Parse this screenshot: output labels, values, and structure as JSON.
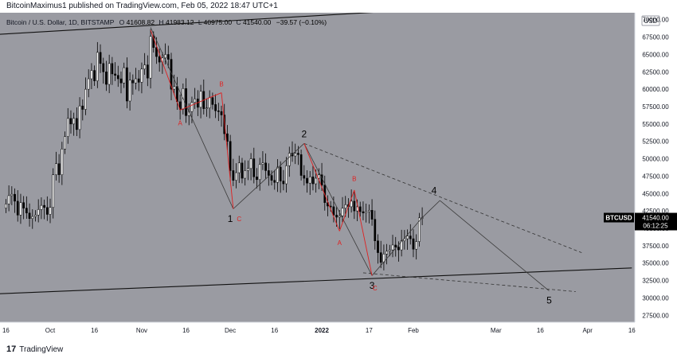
{
  "header": {
    "publisher_line": "BitcoinMaximus1 published on TradingView.com, Feb 05, 2022 18:47 UTC+1"
  },
  "footer": {
    "logo_glyph": "17",
    "brand": "TradingView"
  },
  "chart_data": {
    "type": "candlestick",
    "symbol_line": {
      "name": "Bitcoin / U.S. Dollar, 1D, BITSTAMP",
      "o_label": "O",
      "o": "41608.82",
      "h_label": "H",
      "h": "41983.12",
      "l_label": "L",
      "l": "40975.00",
      "c_label": "C",
      "c": "41540.00",
      "change": "−39.57 (−0.10%)"
    },
    "currency": "USD",
    "price_tag": {
      "ticker": "BTCUSD",
      "price": "41540.00",
      "countdown": "06:12:25"
    },
    "y_axis": {
      "ticks": [
        "70000.00",
        "67500.00",
        "65000.00",
        "62500.00",
        "60000.00",
        "57500.00",
        "55000.00",
        "52500.00",
        "50000.00",
        "47500.00",
        "45000.00",
        "42500.00",
        "40000.00",
        "37500.00",
        "35000.00",
        "32500.00",
        "30000.00",
        "27500.00"
      ],
      "ylim": [
        26500,
        71000
      ]
    },
    "x_axis": {
      "ticks": [
        {
          "label": "16",
          "day": 0
        },
        {
          "label": "Oct",
          "day": 15
        },
        {
          "label": "16",
          "day": 30
        },
        {
          "label": "Nov",
          "day": 46
        },
        {
          "label": "16",
          "day": 61
        },
        {
          "label": "Dec",
          "day": 76
        },
        {
          "label": "16",
          "day": 91
        },
        {
          "label": "2022",
          "day": 107,
          "bold": true
        },
        {
          "label": "17",
          "day": 123
        },
        {
          "label": "Feb",
          "day": 138
        },
        {
          "label": "Mar",
          "day": 166
        },
        {
          "label": "16",
          "day": 181
        },
        {
          "label": "Apr",
          "day": 197
        },
        {
          "label": "16",
          "day": 212
        }
      ],
      "xlim": [
        -2,
        213
      ]
    },
    "candles_close": [
      43500,
      44700,
      44900,
      43900,
      41900,
      43700,
      42900,
      42200,
      41400,
      41700,
      41900,
      42700,
      43300,
      43000,
      42000,
      43000,
      47700,
      49300,
      47700,
      51400,
      53200,
      55800,
      55000,
      55800,
      54200,
      57600,
      57100,
      60000,
      61500,
      62700,
      61200,
      65300,
      63700,
      62500,
      60700,
      63700,
      62200,
      62000,
      61500,
      60900,
      63100,
      58300,
      61300,
      60900,
      61500,
      61000,
      62900,
      63500,
      61600,
      67600,
      66000,
      64700,
      63900,
      64500,
      65000,
      64300,
      60000,
      60400,
      58200,
      57100,
      60100,
      56200,
      56800,
      58100,
      58600,
      57400,
      59700,
      57200,
      57300,
      58800,
      57800,
      56900,
      56800,
      56300,
      53600,
      52500,
      48300,
      46900,
      48000,
      49400,
      47200,
      48300,
      48600,
      50000,
      47400,
      47000,
      49200,
      49400,
      48300,
      47600,
      46900,
      46600,
      48800,
      46800,
      46400,
      49000,
      50800,
      50400,
      50800,
      50600,
      47600,
      47200,
      46500,
      47400,
      46400,
      47200,
      47700,
      46200,
      43700,
      43200,
      43100,
      41900,
      41600,
      41800,
      42900,
      43400,
      43100,
      43900,
      42500,
      43100,
      42400,
      42200,
      42400,
      42600,
      41300,
      38200,
      36500,
      35100,
      36300,
      36700,
      36900,
      37600,
      37300,
      36900,
      38200,
      38500,
      38900,
      38500,
      37000,
      38100,
      41500,
      41540
    ],
    "candle_wick_range": 1800,
    "annotation_labels": [
      "1",
      "2",
      "3",
      "4",
      "5",
      "A",
      "B",
      "C",
      "A",
      "B",
      "C"
    ],
    "annotation_line_style": {
      "wave_color": "#3a3a3a",
      "abc_color": "#e02020",
      "channel_color": "#111111",
      "dashed_color": "#333333"
    },
    "colors": {
      "background": "#9a9ba2",
      "up_candle": "#ffffff",
      "down_candle": "#000000",
      "axis_background": "#ffffff",
      "axis_text": "#131722",
      "price_tag_bg": "#000000",
      "price_tag_text": "#ffffff"
    }
  }
}
